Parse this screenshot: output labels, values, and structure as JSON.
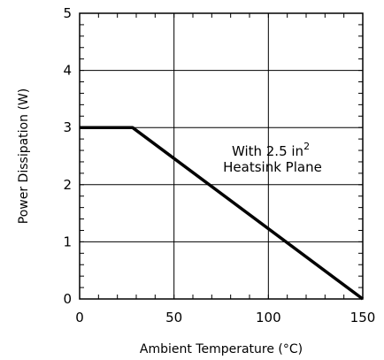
{
  "chart_data": {
    "type": "line",
    "title": "",
    "xlabel": "Ambient Temperature (°C)",
    "ylabel": "Power Dissipation (W)",
    "xlim": [
      0,
      150
    ],
    "ylim": [
      0,
      5
    ],
    "x_major_ticks": [
      0,
      50,
      100,
      150
    ],
    "y_major_ticks": [
      0,
      1,
      2,
      3,
      4,
      5
    ],
    "x_tick_labels": [
      "0",
      "50",
      "100",
      "150"
    ],
    "y_tick_labels": [
      "0",
      "1",
      "2",
      "3",
      "4",
      "5"
    ],
    "x_minor_step": 10,
    "y_minor_step": 0.2,
    "grid": true,
    "series": [
      {
        "x": [
          0,
          28,
          150
        ],
        "y": [
          3,
          3,
          0
        ]
      }
    ],
    "annotation": {
      "line1_prefix": "With 2.5 in",
      "line1_superscript": "2",
      "line2": "Heatsink Plane"
    },
    "colors": {
      "line": "#000000",
      "grid": "#000000"
    }
  }
}
